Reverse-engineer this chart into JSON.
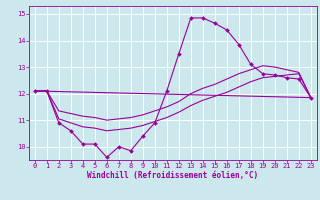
{
  "xlabel": "Windchill (Refroidissement éolien,°C)",
  "background_color": "#cce8ec",
  "line_color": "#990099",
  "grid_color": "#ffffff",
  "xlim": [
    -0.5,
    23.5
  ],
  "ylim": [
    9.5,
    15.3
  ],
  "xticks": [
    0,
    1,
    2,
    3,
    4,
    5,
    6,
    7,
    8,
    9,
    10,
    11,
    12,
    13,
    14,
    15,
    16,
    17,
    18,
    19,
    20,
    21,
    22,
    23
  ],
  "yticks": [
    10,
    11,
    12,
    13,
    14,
    15
  ],
  "series": [
    {
      "x": [
        0,
        1,
        2,
        3,
        4,
        5,
        6,
        7,
        8,
        9,
        10,
        11,
        12,
        13,
        14,
        15,
        16,
        17,
        18,
        19,
        20,
        21,
        22,
        23
      ],
      "y": [
        12.1,
        12.1,
        10.9,
        10.6,
        10.1,
        10.1,
        9.6,
        10.0,
        9.85,
        10.4,
        10.9,
        12.1,
        13.5,
        14.85,
        14.85,
        14.65,
        14.4,
        13.85,
        13.1,
        12.75,
        12.7,
        12.6,
        12.55,
        11.85
      ],
      "marker": true
    },
    {
      "x": [
        0,
        23
      ],
      "y": [
        12.1,
        11.85
      ],
      "marker": false
    },
    {
      "x": [
        0,
        1,
        2,
        3,
        4,
        5,
        6,
        7,
        8,
        9,
        10,
        11,
        12,
        13,
        14,
        15,
        16,
        17,
        18,
        19,
        20,
        21,
        22,
        23
      ],
      "y": [
        12.1,
        12.1,
        11.35,
        11.25,
        11.15,
        11.1,
        11.0,
        11.05,
        11.1,
        11.2,
        11.35,
        11.5,
        11.7,
        12.0,
        12.2,
        12.35,
        12.55,
        12.75,
        12.9,
        13.05,
        13.0,
        12.9,
        12.8,
        11.85
      ],
      "marker": false
    },
    {
      "x": [
        0,
        1,
        2,
        3,
        4,
        5,
        6,
        7,
        8,
        9,
        10,
        11,
        12,
        13,
        14,
        15,
        16,
        17,
        18,
        19,
        20,
        21,
        22,
        23
      ],
      "y": [
        12.1,
        12.1,
        11.05,
        10.9,
        10.75,
        10.7,
        10.6,
        10.65,
        10.7,
        10.8,
        10.95,
        11.1,
        11.3,
        11.55,
        11.75,
        11.9,
        12.05,
        12.25,
        12.45,
        12.6,
        12.65,
        12.7,
        12.75,
        11.85
      ],
      "marker": false
    }
  ]
}
